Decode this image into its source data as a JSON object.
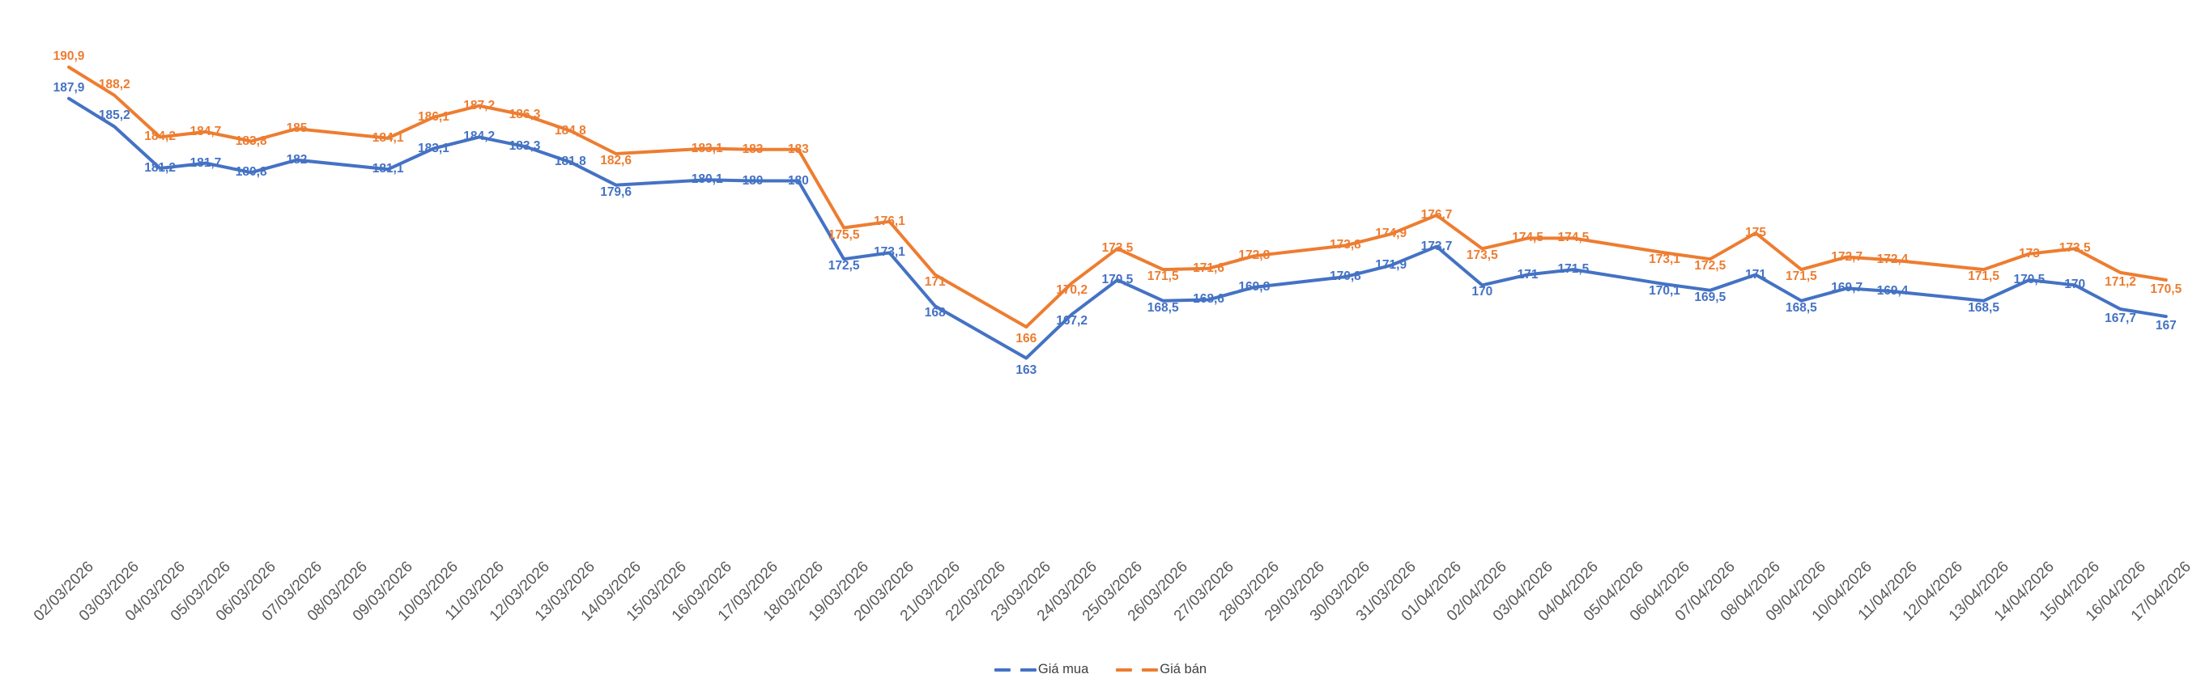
{
  "chart_data": {
    "type": "line",
    "title": "",
    "xlabel": "",
    "ylabel": "",
    "grid": false,
    "y_axis_visible": false,
    "legend_position": "bottom",
    "decimal_separator": ",",
    "note_nulls": "Sundays have no quotes; the line connects across gaps",
    "categories": [
      "02/03/2026",
      "03/03/2026",
      "04/03/2026",
      "05/03/2026",
      "06/03/2026",
      "07/03/2026",
      "08/03/2026",
      "09/03/2026",
      "10/03/2026",
      "11/03/2026",
      "12/03/2026",
      "13/03/2026",
      "14/03/2026",
      "15/03/2026",
      "16/03/2026",
      "17/03/2026",
      "18/03/2026",
      "19/03/2026",
      "20/03/2026",
      "21/03/2026",
      "22/03/2026",
      "23/03/2026",
      "24/03/2026",
      "25/03/2026",
      "26/03/2026",
      "27/03/2026",
      "28/03/2026",
      "29/03/2026",
      "30/03/2026",
      "31/03/2026",
      "01/04/2026",
      "02/04/2026",
      "03/04/2026",
      "04/04/2026",
      "05/04/2026",
      "06/04/2026",
      "07/04/2026",
      "08/04/2026",
      "09/04/2026",
      "10/04/2026",
      "11/04/2026",
      "12/04/2026",
      "13/04/2026",
      "14/04/2026",
      "15/04/2026",
      "16/04/2026",
      "17/04/2026"
    ],
    "series": [
      {
        "name": "Giá mua",
        "color": "#4472C4",
        "values": [
          187.9,
          185.2,
          181.2,
          181.7,
          180.8,
          182,
          null,
          181.1,
          183.1,
          184.2,
          183.3,
          181.8,
          179.6,
          null,
          180.1,
          180,
          180,
          172.5,
          173.1,
          168,
          null,
          163,
          167.2,
          170.5,
          168.5,
          168.6,
          169.8,
          null,
          170.8,
          171.9,
          173.7,
          170,
          171,
          171.5,
          null,
          170.1,
          169.5,
          171,
          168.5,
          169.7,
          169.4,
          null,
          168.5,
          170.5,
          170,
          167.7,
          167
        ]
      },
      {
        "name": "Giá bán",
        "color": "#ED7D31",
        "values": [
          190.9,
          188.2,
          184.2,
          184.7,
          183.8,
          185,
          null,
          184.1,
          186.1,
          187.2,
          186.3,
          184.8,
          182.6,
          null,
          183.1,
          183,
          183,
          175.5,
          176.1,
          171,
          null,
          166,
          170.2,
          173.5,
          171.5,
          171.6,
          172.8,
          null,
          173.8,
          174.9,
          176.7,
          173.5,
          174.5,
          174.5,
          null,
          173.1,
          172.5,
          175,
          171.5,
          172.7,
          172.4,
          null,
          171.5,
          173,
          173.5,
          171.2,
          170.5
        ]
      }
    ]
  }
}
